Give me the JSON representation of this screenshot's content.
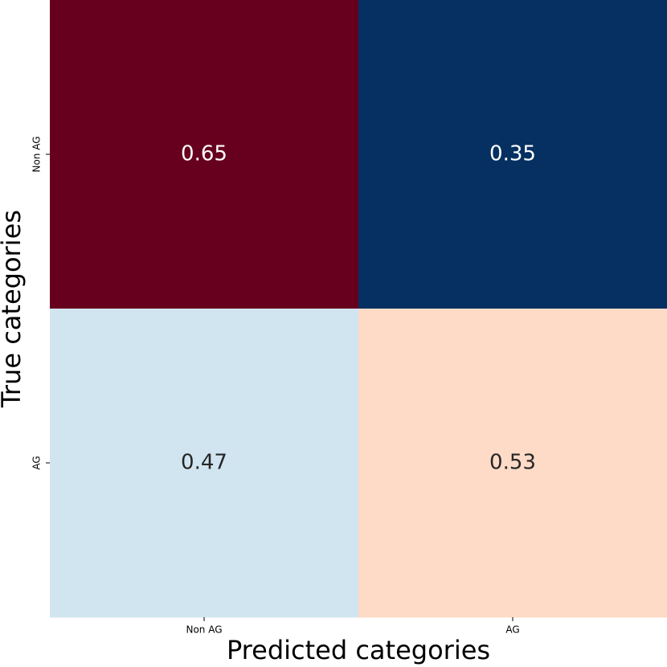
{
  "chart_data": {
    "type": "heatmap",
    "x_label": "Predicted categories",
    "y_label": "True categories",
    "x_categories": [
      "Non AG",
      "AG"
    ],
    "y_categories": [
      "Non AG",
      "AG"
    ],
    "values": [
      [
        0.65,
        0.35
      ],
      [
        0.47,
        0.53
      ]
    ],
    "colors": [
      [
        "#67001f",
        "#053061"
      ],
      [
        "#d1e5f0",
        "#fddbc7"
      ]
    ]
  }
}
